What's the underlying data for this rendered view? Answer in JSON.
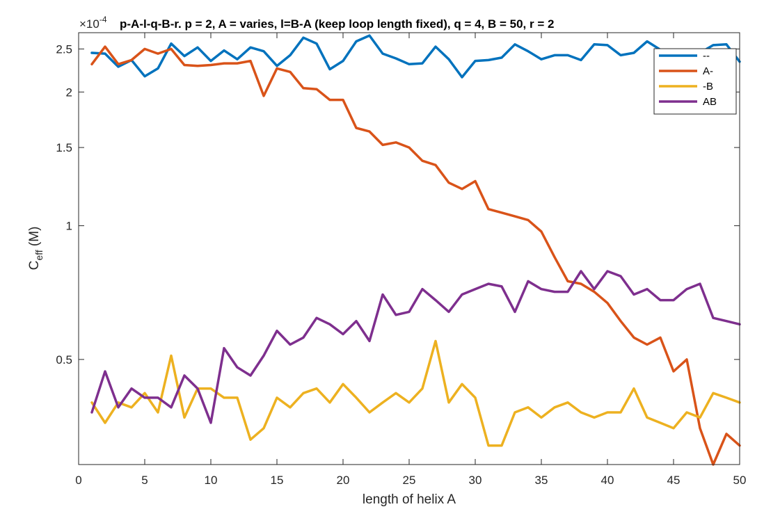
{
  "chart_data": {
    "type": "line",
    "title": "p-A-l-q-B-r.  p = 2, A = varies, l=B-A (keep loop length fixed), q = 4, B = 50, r  = 2",
    "xlabel": "length of helix A",
    "ylabel": "C",
    "ylabel_sub": "eff",
    "ylabel_unit": " (M)",
    "exponent_base": "×10",
    "exponent_power": "-4",
    "xlim": [
      0,
      50
    ],
    "ylim": [
      0.29,
      2.72
    ],
    "yscale": "log",
    "xticks": [
      0,
      5,
      10,
      15,
      20,
      25,
      30,
      35,
      40,
      45,
      50
    ],
    "yticks": [
      0.5,
      1,
      1.5,
      2,
      2.5
    ],
    "ytick_labels": [
      "0.5",
      "1",
      "1.5",
      "2",
      "2.5"
    ],
    "legend_position": "top-right",
    "x": [
      1,
      2,
      3,
      4,
      5,
      6,
      7,
      8,
      9,
      10,
      11,
      12,
      13,
      14,
      15,
      16,
      17,
      18,
      19,
      20,
      21,
      22,
      23,
      24,
      25,
      26,
      27,
      28,
      29,
      30,
      31,
      32,
      33,
      34,
      35,
      36,
      37,
      38,
      39,
      40,
      41,
      42,
      43,
      44,
      45,
      46,
      47,
      48,
      49,
      50
    ],
    "series": [
      {
        "name": "--",
        "color": "#0072BD",
        "values": [
          2.45,
          2.44,
          2.28,
          2.36,
          2.17,
          2.26,
          2.57,
          2.41,
          2.52,
          2.35,
          2.48,
          2.37,
          2.52,
          2.47,
          2.29,
          2.42,
          2.65,
          2.57,
          2.25,
          2.35,
          2.6,
          2.68,
          2.44,
          2.38,
          2.31,
          2.32,
          2.53,
          2.37,
          2.16,
          2.35,
          2.36,
          2.39,
          2.56,
          2.47,
          2.37,
          2.42,
          2.42,
          2.36,
          2.56,
          2.55,
          2.42,
          2.45,
          2.6,
          2.49,
          2.4,
          2.47,
          2.45,
          2.55,
          2.56,
          2.34
        ]
      },
      {
        "name": "A-",
        "color": "#D95319",
        "values": [
          2.31,
          2.53,
          2.31,
          2.36,
          2.5,
          2.44,
          2.5,
          2.3,
          2.29,
          2.3,
          2.32,
          2.32,
          2.35,
          1.96,
          2.26,
          2.22,
          2.04,
          2.03,
          1.92,
          1.92,
          1.66,
          1.63,
          1.52,
          1.54,
          1.5,
          1.4,
          1.37,
          1.25,
          1.21,
          1.26,
          1.09,
          1.07,
          1.05,
          1.03,
          0.97,
          0.85,
          0.75,
          0.74,
          0.71,
          0.67,
          0.61,
          0.56,
          0.54,
          0.56,
          0.47,
          0.5,
          0.35,
          0.29,
          0.34,
          0.32
        ]
      },
      {
        "name": "-B",
        "color": "#EDB120",
        "values": [
          0.4,
          0.36,
          0.4,
          0.39,
          0.42,
          0.38,
          0.51,
          0.37,
          0.43,
          0.43,
          0.41,
          0.41,
          0.33,
          0.35,
          0.41,
          0.39,
          0.42,
          0.43,
          0.4,
          0.44,
          0.41,
          0.38,
          0.4,
          0.42,
          0.4,
          0.43,
          0.55,
          0.4,
          0.44,
          0.41,
          0.32,
          0.32,
          0.38,
          0.39,
          0.37,
          0.39,
          0.4,
          0.38,
          0.37,
          0.38,
          0.38,
          0.43,
          0.37,
          0.36,
          0.35,
          0.38,
          0.37,
          0.42,
          0.41,
          0.4
        ]
      },
      {
        "name": "AB",
        "color": "#7E2F8E",
        "values": [
          0.38,
          0.47,
          0.39,
          0.43,
          0.41,
          0.41,
          0.39,
          0.46,
          0.43,
          0.36,
          0.53,
          0.48,
          0.46,
          0.51,
          0.58,
          0.54,
          0.56,
          0.62,
          0.6,
          0.57,
          0.61,
          0.55,
          0.7,
          0.63,
          0.64,
          0.72,
          0.68,
          0.64,
          0.7,
          0.72,
          0.74,
          0.73,
          0.64,
          0.75,
          0.72,
          0.71,
          0.71,
          0.79,
          0.72,
          0.79,
          0.77,
          0.7,
          0.72,
          0.68,
          0.68,
          0.72,
          0.74,
          0.62,
          0.61,
          0.6
        ]
      }
    ]
  }
}
